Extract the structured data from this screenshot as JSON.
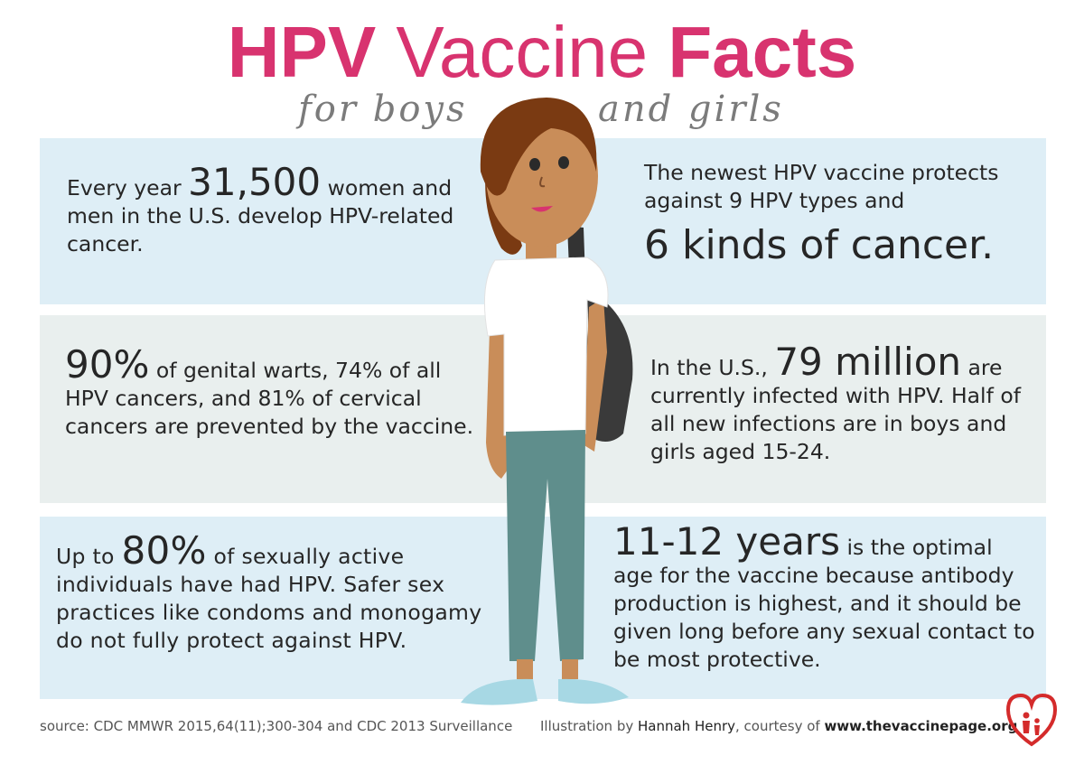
{
  "title": {
    "part1": "HPV",
    "part2": " Vaccine ",
    "part3": "Facts"
  },
  "subtitle": {
    "left": "for boys",
    "right": "and girls"
  },
  "facts": {
    "f1": {
      "pre": "Every year ",
      "big": "31,500",
      "post": " women and men in the U.S. develop HPV-related cancer."
    },
    "f2": {
      "pre": "The newest HPV vaccine protects against 9 HPV types and",
      "big": "6 kinds of cancer."
    },
    "f3": {
      "big": "90%",
      "post": " of genital warts, 74% of all HPV  cancers,  and 81% of cervical cancers are prevented by the vaccine."
    },
    "f4": {
      "pre": "In the U.S., ",
      "big": "79 million",
      "post": " are currently infected with HPV. Half of all new infections are in boys and girls aged 15-24."
    },
    "f5": {
      "pre": "Up to ",
      "big": "80%",
      "post": " of sexually active individuals have had HPV. Safer sex practices like condoms and monogamy do not fully protect against HPV."
    },
    "f6": {
      "big": "11-12 years",
      "post": " is the optimal age for the vaccine because antibody production is highest, and it should be given long before any sexual contact to be most protective."
    }
  },
  "footer": {
    "source": "source: CDC MMWR 2015,64(11);300-304 and CDC 2013 Surveillance",
    "illustration_pre": "Illustration by ",
    "illustrator": "Hannah Henry",
    "courtesy": ", courtesy of ",
    "url": "www.thevaccinepage.org"
  },
  "colors": {
    "accent": "#d8336f",
    "panel_blue": "#deeef6",
    "panel_gray": "#e9efee",
    "logo_red": "#d42b2b"
  },
  "icons": {
    "figure": "teen-illustration",
    "logo": "family-heart-icon"
  }
}
